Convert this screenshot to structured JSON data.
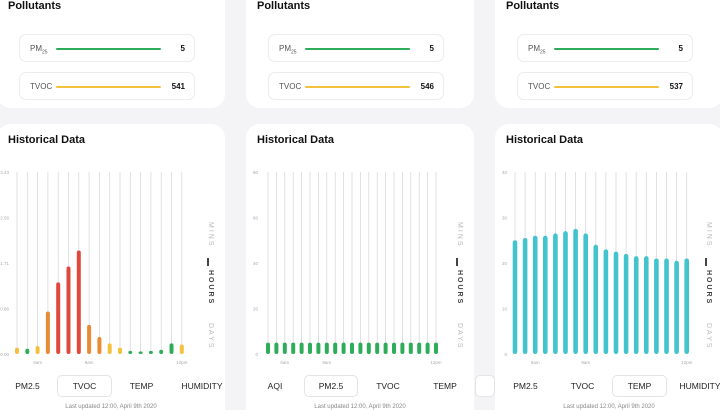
{
  "pollutants_title": "Pollutants",
  "history_title": "Historical Data",
  "last_updated": "Last updated 12:00, April 9th 2020",
  "time_modes": [
    "MINS",
    "HOURS",
    "DAYS"
  ],
  "x_tick_labels": [
    "6am",
    "9am",
    "12pm"
  ],
  "colors": {
    "green": "#2eac5a",
    "yellow": "#f2c23c",
    "red": "#e0483c",
    "orange": "#e98a34",
    "teal": "#42c3cd"
  },
  "panels": [
    {
      "pm_label": "PM",
      "pm_sub": "25",
      "pm_value": "5",
      "tvoc_label": "TVOC",
      "tvoc_value": "541",
      "tabs": [
        "PM2.5",
        "TVOC",
        "TEMP",
        "HUMIDITY"
      ],
      "selected_tab": "TVOC"
    },
    {
      "pm_label": "PM",
      "pm_sub": "25",
      "pm_value": "5",
      "tvoc_label": "TVOC",
      "tvoc_value": "546",
      "tabs": [
        "AQI",
        "PM2.5",
        "TVOC",
        "TEMP",
        ""
      ],
      "selected_tab": "PM2.5"
    },
    {
      "pm_label": "PM",
      "pm_sub": "25",
      "pm_value": "5",
      "tvoc_label": "TVOC",
      "tvoc_value": "537",
      "tabs": [
        "PM2.5",
        "TVOC",
        "TEMP",
        "HUMIDITY"
      ],
      "selected_tab": "TEMP"
    }
  ],
  "chart_data": [
    {
      "type": "bar",
      "y_ticks": [
        "0.00",
        "0.86",
        "1.71",
        "2.56",
        "3.43"
      ],
      "ylim": [
        0,
        3.43
      ],
      "values": [
        0.12,
        0.1,
        0.15,
        0.8,
        1.35,
        1.65,
        1.95,
        0.55,
        0.32,
        0.2,
        0.12,
        0.06,
        0.05,
        0.06,
        0.08,
        0.2,
        0.18
      ],
      "bar_colors": [
        "yellow",
        "green",
        "yellow",
        "orange",
        "red",
        "red",
        "red",
        "orange",
        "orange",
        "yellow",
        "yellow",
        "green",
        "green",
        "green",
        "green",
        "green",
        "yellow"
      ]
    },
    {
      "type": "bar",
      "y_ticks": [
        "0",
        "20",
        "40",
        "60",
        "80"
      ],
      "ylim": [
        0,
        80
      ],
      "values": [
        5,
        5,
        5,
        5,
        5,
        5,
        5,
        5,
        5,
        5,
        5,
        5,
        5,
        5,
        5,
        5,
        5,
        5,
        5,
        5,
        5
      ],
      "bar_colors": [
        "green"
      ]
    },
    {
      "type": "bar",
      "y_ticks": [
        "0",
        "10",
        "20",
        "30",
        "40"
      ],
      "ylim": [
        0,
        40
      ],
      "values": [
        25,
        25.5,
        26,
        26,
        26.5,
        27,
        27.5,
        26.5,
        24,
        23,
        22.5,
        22,
        21.5,
        21.5,
        21,
        21,
        20.5,
        21
      ],
      "bar_colors": [
        "teal"
      ]
    }
  ]
}
